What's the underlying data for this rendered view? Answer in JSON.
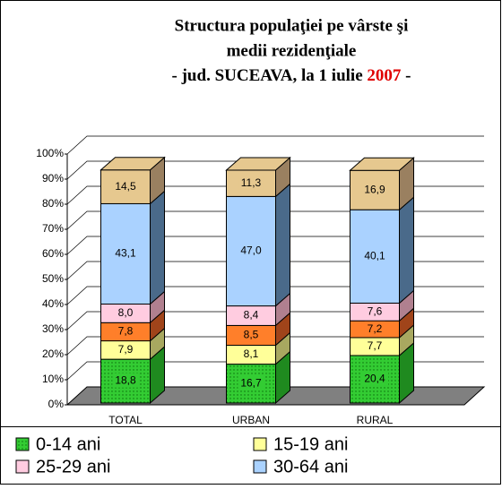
{
  "chart_data": {
    "type": "bar3d_stacked",
    "title": [
      "Structura populaţiei pe vârste şi",
      "medii rezidenţiale"
    ],
    "title_line3": [
      "- jud. SUCEAVA, la 1 iulie ",
      "2007",
      " -"
    ],
    "categories": [
      "TOTAL",
      "URBAN",
      "RURAL"
    ],
    "series": [
      {
        "name": "0-14 ani",
        "color": "#33cc33",
        "side": "#1f8a1f",
        "values": [
          18.8,
          16.7,
          20.4
        ],
        "value_labels": [
          "18,8",
          "16,7",
          "20,4"
        ]
      },
      {
        "name": "15-19 ani",
        "color": "#ffff99",
        "side": "#a8a860",
        "values": [
          7.9,
          8.1,
          7.7
        ],
        "value_labels": [
          "7,9",
          "8,1",
          "7,7"
        ]
      },
      {
        "color": "#ff7f2a",
        "side": "#a0441a",
        "values": [
          7.8,
          8.5,
          7.2
        ],
        "value_labels": [
          "7,8",
          "8,5",
          "7,2"
        ]
      },
      {
        "name": "25-29 ani",
        "color": "#ffcce0",
        "side": "#b0808f",
        "values": [
          8.0,
          8.4,
          7.6
        ],
        "value_labels": [
          "8,0",
          "8,4",
          "7,6"
        ]
      },
      {
        "name": "30-64 ani",
        "color": "#aad2ff",
        "side": "#4a6a8a",
        "values": [
          43.1,
          47.0,
          40.1
        ],
        "value_labels": [
          "43,1",
          "47,0",
          "40,1"
        ]
      },
      {
        "color": "#e6c88f",
        "side": "#9a8060",
        "values": [
          14.5,
          11.3,
          16.9
        ],
        "value_labels": [
          "14,5",
          "11,3",
          "16,9"
        ]
      }
    ],
    "ylim": [
      0,
      100
    ],
    "yticks": [
      {
        "value": 0,
        "label": "0%"
      },
      {
        "value": 10,
        "label": "10%"
      },
      {
        "value": 20,
        "label": "20%"
      },
      {
        "value": 30,
        "label": "30%"
      },
      {
        "value": 40,
        "label": "40%"
      },
      {
        "value": 50,
        "label": "50%"
      },
      {
        "value": 60,
        "label": "60%"
      },
      {
        "value": 70,
        "label": "70%"
      },
      {
        "value": 80,
        "label": "80%"
      },
      {
        "value": 90,
        "label": "90%"
      },
      {
        "value": 100,
        "label": "100%"
      }
    ],
    "grid": true
  }
}
